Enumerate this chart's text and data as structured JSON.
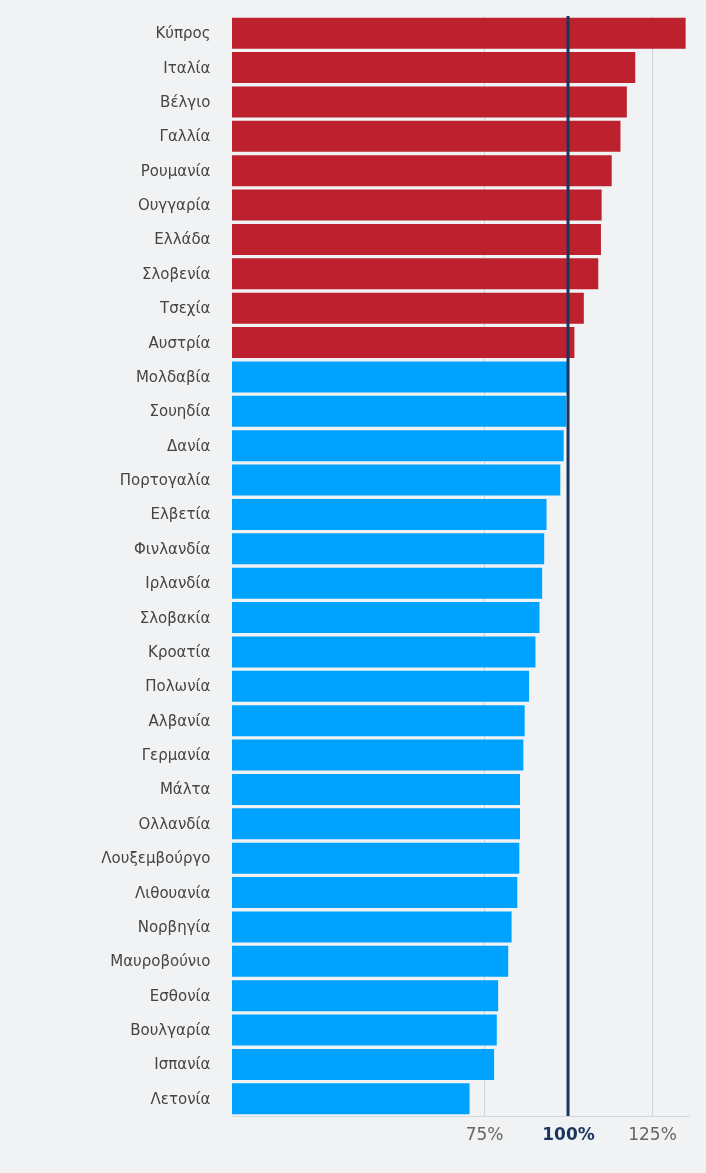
{
  "chart_data": {
    "type": "bar",
    "orientation": "horizontal",
    "categories": [
      "Κύπρος",
      "Ιταλία",
      "Βέλγιο",
      "Γαλλία",
      "Ρουμανία",
      "Ουγγαρία",
      "Ελλάδα",
      "Σλοβενία",
      "Τσεχία",
      "Αυστρία",
      "Μολδαβία",
      "Σουηδία",
      "Δανία",
      "Πορτογαλία",
      "Ελβετία",
      "Φινλανδία",
      "Ιρλανδία",
      "Σλοβακία",
      "Κροατία",
      "Πολωνία",
      "Αλβανία",
      "Γερμανία",
      "Μάλτα",
      "Ολλανδία",
      "Λουξεμβούργο",
      "Λιθουανία",
      "Νορβηγία",
      "Μαυροβούνιο",
      "Εσθονία",
      "Βουλγαρία",
      "Ισπανία",
      "Λετονία"
    ],
    "values": [
      135,
      120,
      117.5,
      115.6,
      113,
      110,
      109.8,
      109,
      104.7,
      101.9,
      100,
      99.5,
      98.7,
      97.7,
      93.6,
      92.9,
      92.3,
      91.5,
      90.3,
      88.4,
      87.1,
      86.7,
      85.7,
      85.7,
      85.5,
      84.9,
      83.2,
      82.2,
      79.2,
      78.8,
      78,
      70.7
    ],
    "colors": [
      "#bd212e",
      "#bd212e",
      "#bd212e",
      "#bd212e",
      "#bd212e",
      "#bd212e",
      "#bd212e",
      "#bd212e",
      "#bd212e",
      "#bd212e",
      "#00a2ff",
      "#00a2ff",
      "#00a2ff",
      "#00a2ff",
      "#00a2ff",
      "#00a2ff",
      "#00a2ff",
      "#00a2ff",
      "#00a2ff",
      "#00a2ff",
      "#00a2ff",
      "#00a2ff",
      "#00a2ff",
      "#00a2ff",
      "#00a2ff",
      "#00a2ff",
      "#00a2ff",
      "#00a2ff",
      "#00a2ff",
      "#00a2ff",
      "#00a2ff",
      "#00a2ff"
    ],
    "xlim": [
      0,
      136
    ],
    "xticks": [
      {
        "value": 75,
        "label": "75%"
      },
      {
        "value": 100,
        "label": "100%"
      },
      {
        "value": 125,
        "label": "125%"
      }
    ],
    "grid": "x",
    "ref_lines": [
      {
        "axis": "x",
        "value": 100,
        "color": "#1b365d"
      }
    ]
  }
}
